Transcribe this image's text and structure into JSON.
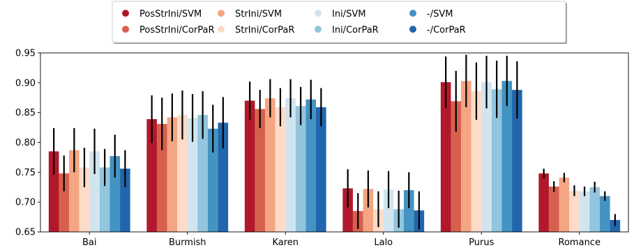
{
  "chart_data": {
    "type": "bar",
    "title": "",
    "xlabel": "",
    "ylabel": "",
    "ylim": [
      0.65,
      0.95
    ],
    "yticks": [
      "0.65",
      "0.70",
      "0.75",
      "0.80",
      "0.85",
      "0.90",
      "0.95"
    ],
    "legend_position": "top-center",
    "legend_columns": 4,
    "grid": false,
    "error_bars": true,
    "categories": [
      "Bai",
      "Burmish",
      "Karen",
      "Lalo",
      "Purus",
      "Romance"
    ],
    "series": [
      {
        "name": "PosStrIni/SVM",
        "color": "#b2182b",
        "values": [
          0.785,
          0.839,
          0.87,
          0.723,
          0.901,
          0.748
        ],
        "errors": [
          0.039,
          0.04,
          0.032,
          0.032,
          0.043,
          0.008
        ]
      },
      {
        "name": "PosStrIni/CorPaR",
        "color": "#d6604d",
        "values": [
          0.748,
          0.831,
          0.856,
          0.685,
          0.869,
          0.726
        ],
        "errors": [
          0.03,
          0.044,
          0.032,
          0.03,
          0.051,
          0.009
        ]
      },
      {
        "name": "StrIni/SVM",
        "color": "#f4a582",
        "values": [
          0.787,
          0.842,
          0.874,
          0.722,
          0.903,
          0.741
        ],
        "errors": [
          0.037,
          0.04,
          0.032,
          0.031,
          0.044,
          0.008
        ]
      },
      {
        "name": "StrIni/CorPaR",
        "color": "#fddbc7",
        "values": [
          0.758,
          0.846,
          0.859,
          0.688,
          0.886,
          0.719
        ],
        "errors": [
          0.033,
          0.041,
          0.032,
          0.03,
          0.048,
          0.009
        ]
      },
      {
        "name": "Ini/SVM",
        "color": "#d1e5f0",
        "values": [
          0.785,
          0.841,
          0.874,
          0.721,
          0.901,
          0.718
        ],
        "errors": [
          0.038,
          0.04,
          0.032,
          0.031,
          0.044,
          0.008
        ]
      },
      {
        "name": "Ini/CorPaR",
        "color": "#92c5de",
        "values": [
          0.758,
          0.846,
          0.861,
          0.688,
          0.889,
          0.725
        ],
        "errors": [
          0.031,
          0.04,
          0.032,
          0.031,
          0.048,
          0.009
        ]
      },
      {
        "name": "-/SVM",
        "color": "#4393c3",
        "values": [
          0.777,
          0.823,
          0.872,
          0.72,
          0.903,
          0.71
        ],
        "errors": [
          0.036,
          0.04,
          0.033,
          0.03,
          0.042,
          0.008
        ]
      },
      {
        "name": "-/CorPaR",
        "color": "#2166ac",
        "values": [
          0.756,
          0.833,
          0.859,
          0.686,
          0.888,
          0.67
        ],
        "errors": [
          0.031,
          0.043,
          0.032,
          0.032,
          0.048,
          0.01
        ]
      }
    ]
  }
}
